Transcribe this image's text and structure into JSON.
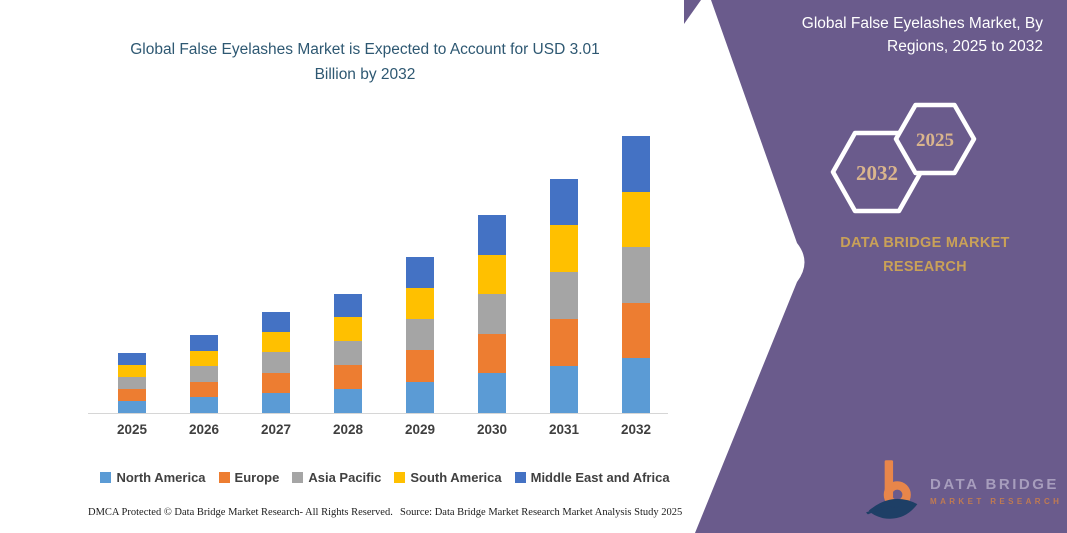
{
  "left_panel": {
    "footer": {
      "dmca": "DMCA Protected © Data Bridge Market Research-  All Rights Reserved.",
      "source": "Source: Data Bridge Market Research  Market Analysis Study 2025"
    }
  },
  "right_panel": {
    "title": "Global False Eyelashes Market, By Regions, 2025 to 2032",
    "background_color": "#6a5b8c",
    "accent_gold": "#c9a158",
    "hexagons": [
      {
        "label": "2032"
      },
      {
        "label": "2025"
      }
    ],
    "brand_line1": "DATA BRIDGE MARKET",
    "brand_line2": "RESEARCH",
    "logo": {
      "line1": "DATA BRIDGE",
      "line2": "MARKET RESEARCH",
      "mark_orange": "#e8864a",
      "mark_navy": "#1e3f66"
    }
  },
  "chart_data": {
    "type": "bar",
    "stacked": true,
    "title": "Global False Eyelashes Market is Expected to Account for USD 3.01 Billion by 2032",
    "unit": "USD Billion",
    "grid": false,
    "legend_position": "bottom",
    "categories": [
      "2025",
      "2026",
      "2027",
      "2028",
      "2029",
      "2030",
      "2031",
      "2032"
    ],
    "totals": [
      0.65,
      0.85,
      1.1,
      1.3,
      1.7,
      2.15,
      2.55,
      3.01
    ],
    "series": [
      {
        "name": "North America",
        "color": "#5B9BD5",
        "values": [
          0.13,
          0.17,
          0.22,
          0.26,
          0.34,
          0.43,
          0.51,
          0.6
        ]
      },
      {
        "name": "Europe",
        "color": "#ED7D31",
        "values": [
          0.13,
          0.17,
          0.22,
          0.26,
          0.34,
          0.43,
          0.51,
          0.6
        ]
      },
      {
        "name": "Asia Pacific",
        "color": "#A5A5A5",
        "values": [
          0.13,
          0.17,
          0.22,
          0.26,
          0.34,
          0.43,
          0.51,
          0.6
        ]
      },
      {
        "name": "South America",
        "color": "#FFC000",
        "values": [
          0.13,
          0.17,
          0.22,
          0.26,
          0.34,
          0.43,
          0.51,
          0.6
        ]
      },
      {
        "name": "Middle East and Africa",
        "color": "#4472C4",
        "values": [
          0.13,
          0.17,
          0.22,
          0.26,
          0.34,
          0.43,
          0.51,
          0.61
        ]
      }
    ]
  }
}
